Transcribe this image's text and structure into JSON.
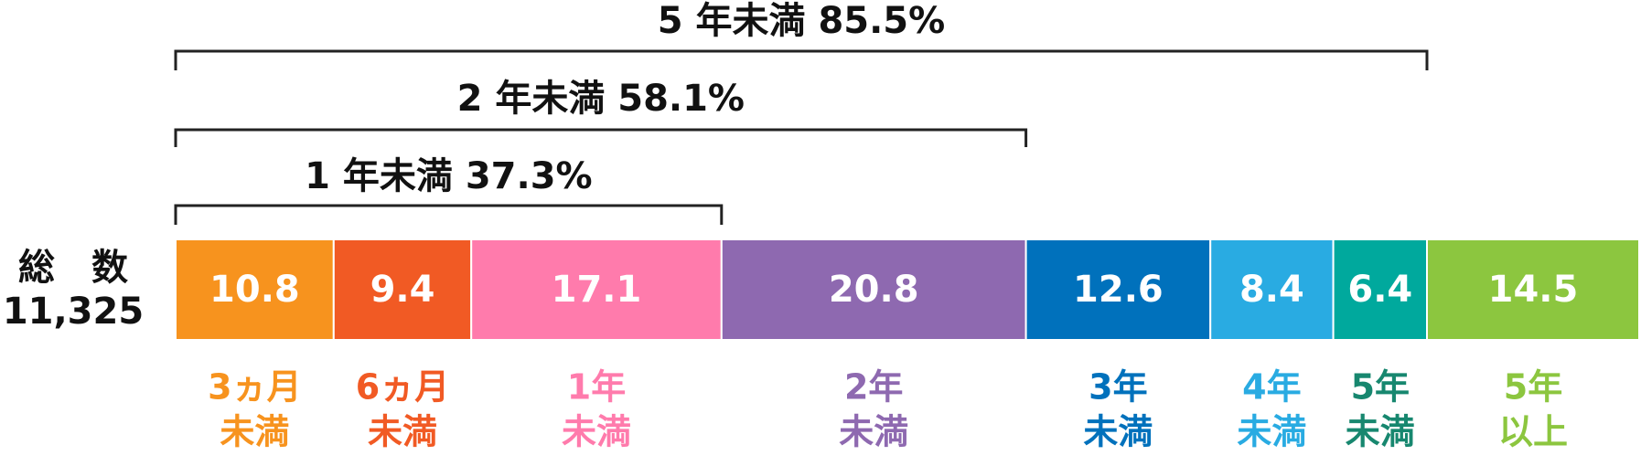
{
  "chart_data": {
    "type": "stacked-bar",
    "total_label": "総　数",
    "total": "11,325",
    "categories": [
      [
        "3ヵ月",
        "未満"
      ],
      [
        "6ヵ月",
        "未満"
      ],
      [
        "1年",
        "未満"
      ],
      [
        "2年",
        "未満"
      ],
      [
        "3年",
        "未満"
      ],
      [
        "4年",
        "未満"
      ],
      [
        "5年",
        "未満"
      ],
      [
        "5年",
        "以上"
      ]
    ],
    "values": [
      10.8,
      9.4,
      17.1,
      20.8,
      12.6,
      8.4,
      6.4,
      14.5
    ],
    "colors": [
      "#f7931e",
      "#f15a24",
      "#ff7bac",
      "#8e69b0",
      "#0071bc",
      "#29abe2",
      "#00a99d",
      "#8cc63f"
    ],
    "label_colors": [
      "#f7931e",
      "#f15a24",
      "#ff7bac",
      "#8e69b0",
      "#0071bc",
      "#29abe2",
      "#17876f",
      "#8cc63f"
    ],
    "xlim": [
      0,
      100
    ],
    "brackets": [
      {
        "value": 37.3,
        "label": "1 年未満 37.3%"
      },
      {
        "value": 58.1,
        "label": "2 年未満 58.1%"
      },
      {
        "value": 85.5,
        "label": "5 年未満 85.5%"
      }
    ]
  }
}
